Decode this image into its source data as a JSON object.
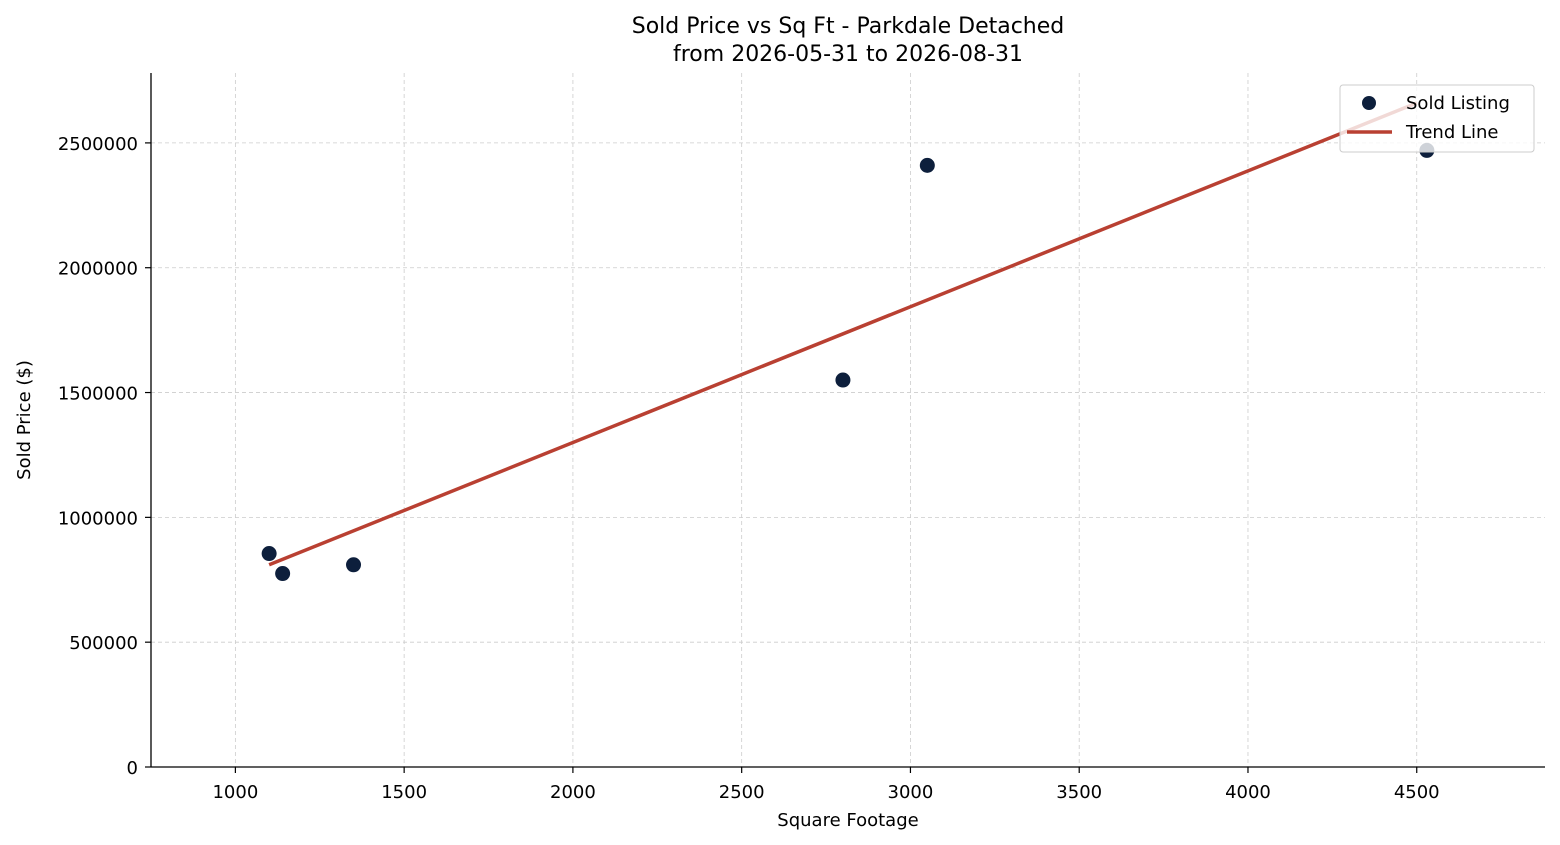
{
  "chart_data": {
    "type": "scatter",
    "title": "Sold Price vs Sq Ft - Parkdale Detached",
    "subtitle": "from 2026-05-31 to 2026-08-31",
    "xlabel": "Square Footage",
    "ylabel": "Sold Price ($)",
    "xlim": [
      750,
      4880
    ],
    "ylim": [
      0,
      2780000
    ],
    "xticks": [
      1000,
      1500,
      2000,
      2500,
      3000,
      3500,
      4000,
      4500
    ],
    "yticks": [
      0,
      500000,
      1000000,
      1500000,
      2000000,
      2500000
    ],
    "grid": true,
    "legend_position": "top-right",
    "series": [
      {
        "name": "Sold Listing",
        "kind": "scatter",
        "color": "#0d1f3c",
        "points": [
          {
            "x": 1100,
            "y": 855000
          },
          {
            "x": 1140,
            "y": 775000
          },
          {
            "x": 1350,
            "y": 810000
          },
          {
            "x": 2800,
            "y": 1550000
          },
          {
            "x": 3050,
            "y": 2410000
          },
          {
            "x": 4530,
            "y": 2470000
          }
        ]
      },
      {
        "name": "Trend Line",
        "kind": "line",
        "color": "#b94032",
        "points": [
          {
            "x": 1100,
            "y": 810000
          },
          {
            "x": 4500,
            "y": 2660000
          }
        ]
      }
    ]
  }
}
